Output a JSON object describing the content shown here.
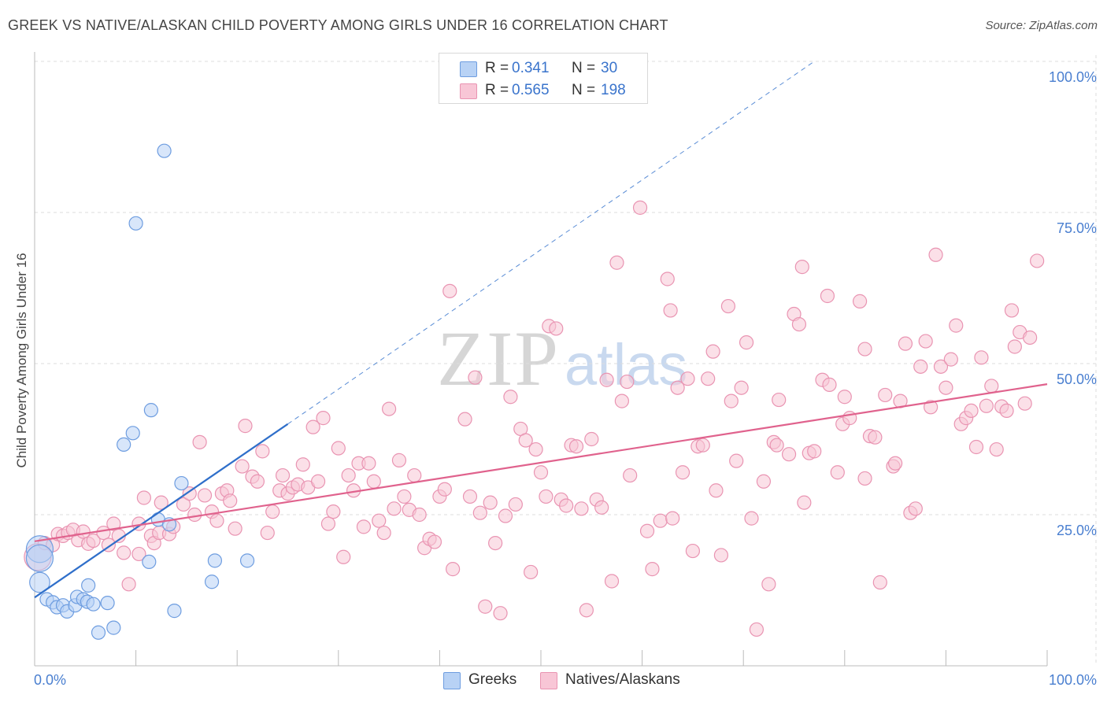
{
  "header": {
    "title": "GREEK VS NATIVE/ALASKAN CHILD POVERTY AMONG GIRLS UNDER 16 CORRELATION CHART",
    "source": "Source: ZipAtlas.com"
  },
  "watermark": {
    "zip": "ZIP",
    "atlas": "atlas"
  },
  "legend_top": {
    "rows": [
      {
        "r_label": "R =",
        "r_value": "0.341",
        "n_label": "N =",
        "n_value": "30"
      },
      {
        "r_label": "R =",
        "r_value": "0.565",
        "n_label": "N =",
        "n_value": "198"
      }
    ]
  },
  "legend_bottom": {
    "items": [
      "Greeks",
      "Natives/Alaskans"
    ]
  },
  "colors": {
    "greeks_fill": "#b8d2f5",
    "greeks_stroke": "#6e9de0",
    "greeks_line": "#2f6fca",
    "natives_fill": "#f8c6d6",
    "natives_stroke": "#e994b2",
    "natives_line": "#e0628d",
    "axis_text": "#4a7fd0",
    "grid": "#dddddd"
  },
  "chart_data": {
    "type": "scatter",
    "title": "GREEK VS NATIVE/ALASKAN CHILD POVERTY AMONG GIRLS UNDER 16 CORRELATION CHART",
    "xlabel": "",
    "ylabel": "Child Poverty Among Girls Under 16",
    "xlim": [
      0,
      100
    ],
    "ylim": [
      0,
      100
    ],
    "x_tick_labels": [
      "0.0%",
      "100.0%"
    ],
    "y_ticks": [
      {
        "value": 25,
        "label": "25.0%"
      },
      {
        "value": 50,
        "label": "50.0%"
      },
      {
        "value": 75,
        "label": "75.0%"
      },
      {
        "value": 100,
        "label": "100.0%"
      }
    ],
    "grid": true,
    "legend_placement": "top-center",
    "series": [
      {
        "name": "Greeks",
        "r": 0.341,
        "n": 30,
        "trend": {
          "x": [
            0,
            25
          ],
          "y": [
            11.3,
            40.0
          ],
          "dashed_to": [
            77,
            100
          ]
        },
        "points": [
          [
            0.5,
            19.3,
            2
          ],
          [
            0.5,
            17.8,
            2
          ],
          [
            0.5,
            13.8,
            1.5
          ],
          [
            1.2,
            11,
            1
          ],
          [
            1.8,
            10.5,
            1
          ],
          [
            2.2,
            9.7,
            1
          ],
          [
            2.8,
            10,
            1
          ],
          [
            3.2,
            9.0,
            1
          ],
          [
            4.0,
            10,
            1
          ],
          [
            4.2,
            11.4,
            1
          ],
          [
            4.8,
            11,
            1
          ],
          [
            5.2,
            10.6,
            1
          ],
          [
            5.3,
            13.3,
            1
          ],
          [
            5.8,
            10.2,
            1
          ],
          [
            6.3,
            5.5,
            1
          ],
          [
            7.2,
            10.4,
            1
          ],
          [
            7.8,
            6.3,
            1
          ],
          [
            8.8,
            36.6,
            1
          ],
          [
            9.7,
            38.5,
            1
          ],
          [
            10.0,
            73.2,
            1
          ],
          [
            11.3,
            17.2,
            1
          ],
          [
            11.5,
            42.3,
            1
          ],
          [
            12.2,
            24.2,
            1
          ],
          [
            12.8,
            85.2,
            1
          ],
          [
            13.3,
            23.4,
            1
          ],
          [
            13.8,
            9.1,
            1
          ],
          [
            14.5,
            30.2,
            1
          ],
          [
            17.5,
            13.9,
            1
          ],
          [
            17.8,
            17.4,
            1
          ],
          [
            21.0,
            17.4,
            1
          ]
        ]
      },
      {
        "name": "Natives/Alaskans",
        "r": 0.565,
        "n": 198,
        "trend": {
          "x": [
            0,
            100
          ],
          "y": [
            20.6,
            46.6
          ]
        },
        "points": [
          [
            0.3,
            18.0,
            2
          ],
          [
            1.0,
            20.3,
            1
          ],
          [
            1.8,
            20.0,
            1
          ],
          [
            2.3,
            21.8,
            1
          ],
          [
            2.8,
            21.5,
            1
          ],
          [
            3.3,
            22.0,
            1
          ],
          [
            3.8,
            22.5,
            1
          ],
          [
            4.3,
            20.8,
            1
          ],
          [
            4.8,
            22.2,
            1
          ],
          [
            5.3,
            20.2,
            1
          ],
          [
            5.8,
            20.7,
            1
          ],
          [
            6.8,
            22.0,
            1
          ],
          [
            7.3,
            20.0,
            1
          ],
          [
            7.8,
            23.5,
            1
          ],
          [
            8.3,
            21.5,
            1
          ],
          [
            8.8,
            18.7,
            1
          ],
          [
            9.3,
            13.5,
            1
          ],
          [
            10.3,
            18.5,
            1
          ],
          [
            10.3,
            23.5,
            1
          ],
          [
            10.8,
            27.8,
            1
          ],
          [
            11.5,
            21.5,
            1
          ],
          [
            11.8,
            20.3,
            1
          ],
          [
            12.3,
            22.0,
            1
          ],
          [
            12.5,
            27.0,
            1
          ],
          [
            13.3,
            21.8,
            1
          ],
          [
            13.7,
            23.0,
            1
          ],
          [
            14.7,
            26.7,
            1
          ],
          [
            15.3,
            28.5,
            1
          ],
          [
            15.8,
            25.0,
            1
          ],
          [
            16.3,
            37.0,
            1
          ],
          [
            16.8,
            28.2,
            1
          ],
          [
            17.5,
            25.5,
            1
          ],
          [
            18.0,
            24.0,
            1
          ],
          [
            18.5,
            28.5,
            1
          ],
          [
            19.0,
            29.0,
            1
          ],
          [
            19.3,
            27.3,
            1
          ],
          [
            19.8,
            22.7,
            1
          ],
          [
            20.5,
            33.0,
            1
          ],
          [
            20.8,
            39.7,
            1
          ],
          [
            21.5,
            31.3,
            1
          ],
          [
            22.0,
            30.5,
            1
          ],
          [
            22.5,
            35.5,
            1
          ],
          [
            23.0,
            22.0,
            1
          ],
          [
            23.5,
            25.5,
            1
          ],
          [
            24.2,
            29.0,
            1
          ],
          [
            24.5,
            31.5,
            1
          ],
          [
            25.0,
            28.5,
            1
          ],
          [
            25.5,
            29.5,
            1
          ],
          [
            26.0,
            30.0,
            1
          ],
          [
            26.5,
            33.3,
            1
          ],
          [
            27.0,
            29.5,
            1
          ],
          [
            27.5,
            39.5,
            1
          ],
          [
            28.0,
            30.5,
            1
          ],
          [
            28.5,
            41.0,
            1
          ],
          [
            29.0,
            23.5,
            1
          ],
          [
            29.5,
            25.5,
            1
          ],
          [
            30.0,
            36.0,
            1
          ],
          [
            30.5,
            18.0,
            1
          ],
          [
            31.0,
            31.5,
            1
          ],
          [
            31.5,
            29.0,
            1
          ],
          [
            32.0,
            33.5,
            1
          ],
          [
            32.5,
            23.0,
            1
          ],
          [
            33.0,
            33.5,
            1
          ],
          [
            33.5,
            30.5,
            1
          ],
          [
            34.0,
            24.0,
            1
          ],
          [
            34.5,
            22.0,
            1
          ],
          [
            35.0,
            42.5,
            1
          ],
          [
            35.5,
            26.0,
            1
          ],
          [
            36.0,
            34.0,
            1
          ],
          [
            36.5,
            28.0,
            1
          ],
          [
            37.0,
            25.8,
            1
          ],
          [
            37.5,
            31.5,
            1
          ],
          [
            38.0,
            25.0,
            1
          ],
          [
            38.5,
            19.5,
            1
          ],
          [
            39.0,
            21.0,
            1
          ],
          [
            39.5,
            20.5,
            1
          ],
          [
            40.0,
            28.0,
            1
          ],
          [
            40.5,
            29.2,
            1
          ],
          [
            41.0,
            62.0,
            1
          ],
          [
            41.3,
            16.0,
            1
          ],
          [
            42.5,
            40.8,
            1
          ],
          [
            43.0,
            28.0,
            1
          ],
          [
            43.5,
            47.7,
            1
          ],
          [
            44.0,
            25.3,
            1
          ],
          [
            44.5,
            9.8,
            1
          ],
          [
            45.0,
            27.0,
            1
          ],
          [
            45.5,
            20.3,
            1
          ],
          [
            46.0,
            8.7,
            1
          ],
          [
            46.5,
            24.8,
            1
          ],
          [
            47.0,
            44.5,
            1
          ],
          [
            47.5,
            26.7,
            1
          ],
          [
            48.0,
            39.2,
            1
          ],
          [
            48.5,
            37.3,
            1
          ],
          [
            49.0,
            15.5,
            1
          ],
          [
            49.5,
            35.8,
            1
          ],
          [
            50.0,
            32.0,
            1
          ],
          [
            50.5,
            28.0,
            1
          ],
          [
            50.8,
            56.2,
            1
          ],
          [
            51.5,
            55.8,
            1
          ],
          [
            52.0,
            27.5,
            1
          ],
          [
            52.5,
            26.5,
            1
          ],
          [
            53.0,
            36.5,
            1
          ],
          [
            53.5,
            36.3,
            1
          ],
          [
            54.0,
            26.0,
            1
          ],
          [
            54.5,
            9.2,
            1
          ],
          [
            55.0,
            37.5,
            1
          ],
          [
            55.5,
            27.5,
            1
          ],
          [
            56.0,
            26.2,
            1
          ],
          [
            56.5,
            47.3,
            1
          ],
          [
            57.0,
            14.0,
            1
          ],
          [
            57.5,
            66.7,
            1
          ],
          [
            58.0,
            43.8,
            1
          ],
          [
            58.5,
            47.0,
            1
          ],
          [
            58.8,
            31.5,
            1
          ],
          [
            59.8,
            75.8,
            1
          ],
          [
            60.5,
            22.3,
            1
          ],
          [
            61.0,
            16.0,
            1
          ],
          [
            61.8,
            24.0,
            1
          ],
          [
            62.5,
            64.0,
            1
          ],
          [
            62.8,
            58.8,
            1
          ],
          [
            63.0,
            24.4,
            1
          ],
          [
            63.5,
            46.0,
            1
          ],
          [
            64.0,
            32.0,
            1
          ],
          [
            64.5,
            47.5,
            1
          ],
          [
            65.0,
            19.0,
            1
          ],
          [
            65.5,
            36.3,
            1
          ],
          [
            66.0,
            36.5,
            1
          ],
          [
            66.5,
            47.5,
            1
          ],
          [
            67.0,
            52.0,
            1
          ],
          [
            67.3,
            29.0,
            1
          ],
          [
            67.8,
            18.3,
            1
          ],
          [
            68.5,
            59.5,
            1
          ],
          [
            68.8,
            43.8,
            1
          ],
          [
            69.3,
            33.9,
            1
          ],
          [
            69.8,
            46.0,
            1
          ],
          [
            70.3,
            53.5,
            1
          ],
          [
            70.8,
            24.4,
            1
          ],
          [
            71.3,
            6.0,
            1
          ],
          [
            72.0,
            30.5,
            1
          ],
          [
            72.5,
            13.5,
            1
          ],
          [
            73.0,
            37.0,
            1
          ],
          [
            73.3,
            36.5,
            1
          ],
          [
            73.5,
            44.0,
            1
          ],
          [
            74.5,
            35.0,
            1
          ],
          [
            75.0,
            58.2,
            1
          ],
          [
            75.5,
            56.5,
            1
          ],
          [
            75.8,
            66.0,
            1
          ],
          [
            76.0,
            27.0,
            1
          ],
          [
            76.5,
            35.2,
            1
          ],
          [
            77.0,
            35.5,
            1
          ],
          [
            77.8,
            47.3,
            1
          ],
          [
            78.3,
            61.2,
            1
          ],
          [
            78.5,
            46.5,
            1
          ],
          [
            79.3,
            32.0,
            1
          ],
          [
            79.8,
            40.0,
            1
          ],
          [
            80.0,
            44.5,
            1
          ],
          [
            80.5,
            41.0,
            1
          ],
          [
            81.5,
            60.3,
            1
          ],
          [
            82.0,
            52.4,
            1
          ],
          [
            82.0,
            31.0,
            1
          ],
          [
            82.5,
            38.0,
            1
          ],
          [
            83.0,
            37.8,
            1
          ],
          [
            83.5,
            13.8,
            1
          ],
          [
            84.0,
            44.8,
            1
          ],
          [
            84.8,
            33.0,
            1
          ],
          [
            85.0,
            33.5,
            1
          ],
          [
            85.5,
            43.8,
            1
          ],
          [
            86.0,
            53.3,
            1
          ],
          [
            86.5,
            25.3,
            1
          ],
          [
            87.0,
            26.0,
            1
          ],
          [
            87.5,
            49.5,
            1
          ],
          [
            88.0,
            53.7,
            1
          ],
          [
            88.5,
            42.8,
            1
          ],
          [
            89.0,
            68.0,
            1
          ],
          [
            89.5,
            49.5,
            1
          ],
          [
            90.0,
            46.0,
            1
          ],
          [
            90.5,
            50.7,
            1
          ],
          [
            91.0,
            56.3,
            1
          ],
          [
            91.5,
            40.0,
            1
          ],
          [
            92.0,
            41.0,
            1
          ],
          [
            92.5,
            42.2,
            1
          ],
          [
            93.0,
            36.2,
            1
          ],
          [
            93.5,
            51.0,
            1
          ],
          [
            94.0,
            43.0,
            1
          ],
          [
            94.5,
            46.3,
            1
          ],
          [
            95.0,
            35.8,
            1
          ],
          [
            95.5,
            42.9,
            1
          ],
          [
            96.0,
            42.2,
            1
          ],
          [
            96.5,
            58.8,
            1
          ],
          [
            96.8,
            52.8,
            1
          ],
          [
            97.3,
            55.2,
            1
          ],
          [
            97.8,
            43.4,
            1
          ],
          [
            98.3,
            54.3,
            1
          ],
          [
            99.0,
            67.0,
            1
          ]
        ]
      }
    ]
  }
}
